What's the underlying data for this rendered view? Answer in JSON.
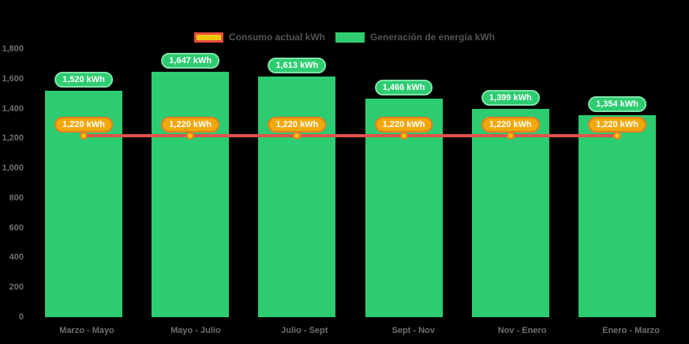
{
  "legend": {
    "items": [
      {
        "label": "Consumo actual kWh",
        "swatch_fill": "#F2C50F",
        "swatch_border": "#E74C3C"
      },
      {
        "label": "Generación de energía kWh",
        "swatch_fill": "#2ECC71",
        "swatch_border": "#2ECC71"
      }
    ]
  },
  "chart_data": {
    "type": "bar+line",
    "title": "",
    "xlabel": "",
    "ylabel": "",
    "categories": [
      "Marzo - Mayo",
      "Mayo - Julio",
      "Julio - Sept",
      "Sept - Nov",
      "Nov - Enero",
      "Enero - Marzo"
    ],
    "series": [
      {
        "name": "Generación de energía kWh",
        "type": "bar",
        "color": "#2ECC71",
        "values": [
          1520,
          1647,
          1613,
          1466,
          1399,
          1354
        ],
        "value_labels": [
          "1,520 kWh",
          "1,647 kWh",
          "1,613 kWh",
          "1,466 kWh",
          "1,399 kWh",
          "1,354 kWh"
        ],
        "label_badge_fill": "#2ECC71",
        "label_badge_border": "#7FE3A9"
      },
      {
        "name": "Consumo actual kWh",
        "type": "line",
        "color": "#E2524B",
        "values": [
          1220,
          1220,
          1220,
          1220,
          1220,
          1220
        ],
        "value_labels": [
          "1,220 kWh",
          "1,220 kWh",
          "1,220 kWh",
          "1,220 kWh",
          "1,220 kWh",
          "1,220 kWh"
        ],
        "marker_fill": "#F4C20F",
        "marker_border": "#E67E22",
        "label_badge_fill": "#F1A80B",
        "label_badge_border": "#E67E22"
      }
    ],
    "ylim": [
      0,
      1800
    ],
    "yticks": [
      {
        "value": 1800,
        "label": "1,800"
      },
      {
        "value": 1600,
        "label": "1,600"
      },
      {
        "value": 1400,
        "label": "1,400"
      },
      {
        "value": 1200,
        "label": "1,200"
      },
      {
        "value": 1000,
        "label": "1,000"
      },
      {
        "value": 800,
        "label": "800"
      },
      {
        "value": 600,
        "label": "600"
      },
      {
        "value": 400,
        "label": "400"
      },
      {
        "value": 200,
        "label": "200"
      },
      {
        "value": 0,
        "label": "0"
      }
    ],
    "grid": false,
    "legend_position": "top",
    "background": "#000000"
  }
}
